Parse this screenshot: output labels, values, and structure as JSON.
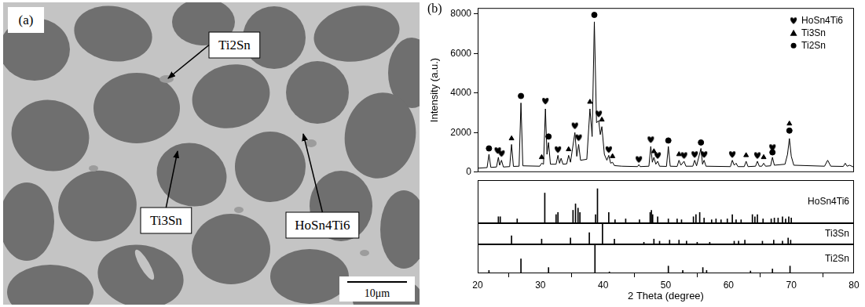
{
  "panel_a": {
    "panel_label": "(a)",
    "labels": [
      "Ti2Sn",
      "Ti3Sn",
      "HoSn4Ti6"
    ],
    "scale_bar": "10μm"
  },
  "chart_data": [
    {
      "type": "line",
      "panel_label": "(b)",
      "y_label": "Intensity (a.u.)",
      "xlim": [
        20,
        80
      ],
      "ylim": [
        0,
        8300
      ],
      "yticks": [
        0,
        2000,
        4000,
        6000,
        8000
      ],
      "grid": false,
      "legend": "upper right",
      "tick_labels": "y",
      "series": [
        {
          "type": "line",
          "color": "#000000",
          "x": [
            20,
            21.5,
            21.8,
            22.1,
            23.0,
            23.3,
            23.5,
            23.8,
            24.1,
            25.1,
            25.4,
            25.7,
            26.6,
            26.9,
            27.2,
            29.9,
            30.2,
            30.5,
            30.8,
            31.05,
            31.3,
            31.6,
            32.5,
            32.8,
            33.05,
            33.3,
            33.6,
            34.2,
            34.5,
            34.8,
            35.5,
            35.8,
            36.1,
            36.4,
            37.4,
            37.9,
            38.25,
            38.6,
            38.95,
            39.3,
            39.55,
            39.8,
            40.2,
            40.6,
            40.9,
            41.2,
            41.5,
            41.8,
            43.0,
            45.5,
            45.7,
            45.9,
            47.3,
            47.6,
            47.85,
            48.1,
            48.4,
            48.7,
            49.0,
            50.1,
            50.4,
            50.7,
            51.8,
            52.1,
            52.4,
            52.9,
            53.2,
            54.3,
            54.6,
            54.9,
            55.6,
            55.85,
            56.1,
            56.4,
            60.3,
            60.6,
            60.9,
            61.2,
            61.5,
            62.5,
            62.8,
            63.1,
            64.3,
            64.6,
            64.9,
            65.3,
            65.6,
            65.9,
            66.7,
            67.0,
            67.3,
            69.0,
            69.4,
            69.7,
            70.0,
            70.4,
            75.3,
            75.8,
            76.3,
            78.3,
            78.6,
            78.9,
            79.3,
            80
          ],
          "values": [
            200,
            230,
            900,
            240,
            260,
            750,
            350,
            600,
            260,
            280,
            1400,
            290,
            300,
            3500,
            320,
            300,
            450,
            400,
            3200,
            900,
            1500,
            400,
            400,
            850,
            450,
            700,
            400,
            420,
            850,
            500,
            2000,
            800,
            1400,
            600,
            650,
            3200,
            1800,
            7600,
            2500,
            2600,
            1900,
            2300,
            900,
            600,
            850,
            450,
            500,
            330,
            300,
            280,
            380,
            280,
            300,
            1300,
            500,
            750,
            400,
            550,
            300,
            290,
            1300,
            300,
            290,
            600,
            350,
            550,
            300,
            300,
            600,
            320,
            1200,
            400,
            600,
            300,
            280,
            600,
            350,
            450,
            280,
            280,
            550,
            280,
            300,
            550,
            300,
            300,
            450,
            300,
            320,
            750,
            350,
            400,
            900,
            1700,
            800,
            350,
            300,
            600,
            300,
            290,
            450,
            300,
            350,
            250
          ]
        },
        {
          "name": "HoSn4Ti6",
          "type": "scatter",
          "marker": "heart",
          "color": "#000000",
          "x": [
            23.2,
            23.8,
            30.8,
            32.8,
            35.5,
            36.1,
            39.3,
            40.9,
            45.7,
            47.6,
            48.7,
            52.9,
            54.6,
            56.1,
            60.6,
            64.6,
            67.0
          ],
          "values": [
            1100,
            950,
            3600,
            1150,
            2350,
            1750,
            2950,
            1150,
            650,
            1650,
            850,
            850,
            900,
            900,
            900,
            850,
            1250
          ]
        },
        {
          "name": "Ti3Sn",
          "type": "scatter",
          "marker": "triangle",
          "color": "#000000",
          "x": [
            25.4,
            30.2,
            34.5,
            37.9,
            39.8,
            41.5,
            48.1,
            52.1,
            62.8,
            65.6,
            69.7
          ],
          "values": [
            1700,
            750,
            1150,
            3550,
            2650,
            800,
            1050,
            900,
            850,
            750,
            2450
          ]
        },
        {
          "name": "Ti2Sn",
          "type": "scatter",
          "marker": "circle",
          "color": "#000000",
          "x": [
            21.8,
            26.9,
            31.3,
            38.6,
            50.4,
            55.6,
            67.0,
            69.7
          ],
          "values": [
            1200,
            3850,
            1800,
            7950,
            1600,
            1500,
            1000,
            2100
          ]
        }
      ]
    },
    {
      "type": "bar",
      "title": "HoSn4Ti6",
      "color": "#000000",
      "grid": false,
      "tick_labels": false,
      "xlim": [
        20,
        80
      ],
      "ylim": [
        0,
        100
      ],
      "x": [
        23.3,
        23.6,
        26.3,
        30.7,
        32.5,
        32.8,
        35.2,
        35.6,
        36.0,
        36.3,
        38.8,
        39.1,
        40.9,
        41.9,
        43.6,
        45.8,
        47.5,
        47.7,
        47.9,
        48.7,
        50.4,
        51.8,
        52.5,
        54.4,
        54.8,
        55.4,
        56.1,
        57.3,
        58.0,
        58.8,
        59.8,
        60.6,
        61.2,
        62.0,
        63.8,
        64.2,
        64.6,
        65.5,
        66.8,
        67.3,
        67.9,
        68.6,
        69.1,
        69.6,
        70.0
      ],
      "values": [
        15,
        15,
        10,
        70,
        20,
        25,
        30,
        45,
        35,
        25,
        20,
        80,
        25,
        8,
        10,
        8,
        25,
        30,
        20,
        15,
        10,
        10,
        8,
        15,
        20,
        25,
        12,
        8,
        10,
        8,
        10,
        20,
        8,
        8,
        20,
        15,
        20,
        10,
        10,
        12,
        12,
        15,
        10,
        15,
        12
      ]
    },
    {
      "type": "bar",
      "title": "Ti3Sn",
      "color": "#000000",
      "grid": false,
      "tick_labels": false,
      "xlim": [
        20,
        80
      ],
      "ylim": [
        0,
        100
      ],
      "x": [
        25.4,
        30.2,
        34.8,
        37.8,
        39.9,
        41.8,
        46.5,
        48.1,
        49.0,
        50.6,
        52.1,
        53.3,
        55.0,
        57.0,
        60.9,
        61.6,
        62.6,
        65.4,
        67.2,
        68.6,
        69.5,
        69.9
      ],
      "values": [
        40,
        25,
        30,
        55,
        100,
        25,
        10,
        25,
        15,
        20,
        20,
        15,
        10,
        10,
        15,
        15,
        20,
        15,
        20,
        15,
        30,
        20
      ]
    },
    {
      "type": "bar",
      "title": "Ti2Sn",
      "color": "#000000",
      "grid": false,
      "tick_labels": "x",
      "x_label": "2 Theta (degree)",
      "xlim": [
        20,
        80
      ],
      "xticks": [
        20,
        30,
        40,
        50,
        60,
        70,
        80
      ],
      "ylim": [
        0,
        100
      ],
      "x": [
        21.8,
        26.9,
        31.3,
        38.7,
        41.0,
        50.4,
        52.7,
        55.9,
        56.5,
        63.5,
        67.0,
        69.8
      ],
      "values": [
        10,
        50,
        20,
        100,
        5,
        25,
        10,
        20,
        10,
        8,
        15,
        25
      ]
    }
  ]
}
